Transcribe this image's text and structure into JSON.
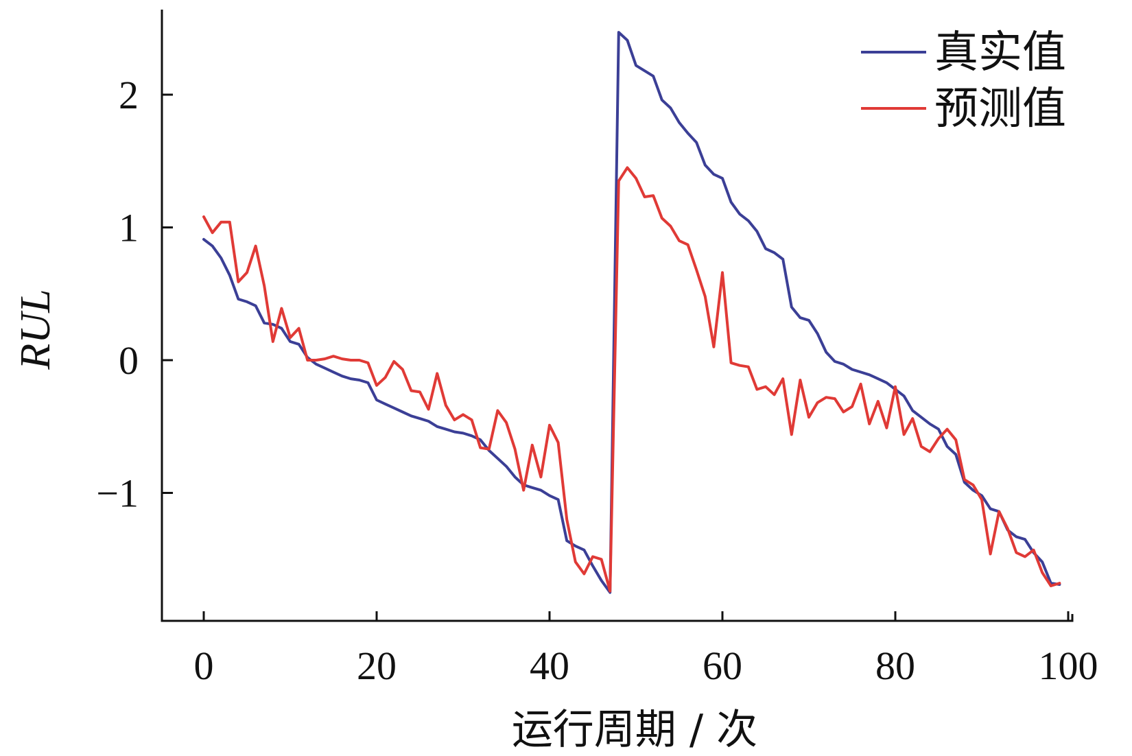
{
  "chart_data": {
    "type": "line",
    "xlabel": "运行周期 / 次",
    "ylabel": "RUL",
    "xlim": [
      -5,
      100
    ],
    "ylim": [
      -1.95,
      2.6
    ],
    "x_ticks": [
      0,
      20,
      40,
      60,
      80,
      100
    ],
    "x_tick_labels": [
      "0",
      "20",
      "40",
      "60",
      "80",
      "100"
    ],
    "y_ticks": [
      2,
      1,
      0,
      -1
    ],
    "y_tick_labels": [
      "2",
      "1",
      "0",
      "−1"
    ],
    "grid": false,
    "legend_position": "top-right",
    "x": [
      0,
      1,
      2,
      3,
      4,
      5,
      6,
      7,
      8,
      9,
      10,
      11,
      12,
      13,
      14,
      15,
      16,
      17,
      18,
      19,
      20,
      21,
      22,
      23,
      24,
      25,
      26,
      27,
      28,
      29,
      30,
      31,
      32,
      33,
      34,
      35,
      36,
      37,
      38,
      39,
      40,
      41,
      42,
      43,
      44,
      45,
      46,
      47,
      48,
      49,
      50,
      51,
      52,
      53,
      54,
      55,
      56,
      57,
      58,
      59,
      60,
      61,
      62,
      63,
      64,
      65,
      66,
      67,
      68,
      69,
      70,
      71,
      72,
      73,
      74,
      75,
      76,
      77,
      78,
      79,
      80,
      81,
      82,
      83,
      84,
      85,
      86,
      87,
      88,
      89,
      90,
      91,
      92,
      93,
      94,
      95,
      96,
      97,
      98,
      99
    ],
    "series": [
      {
        "name": "真实值",
        "color": "#3b3f96",
        "values": [
          0.91,
          0.86,
          0.77,
          0.64,
          0.46,
          0.44,
          0.41,
          0.28,
          0.27,
          0.24,
          0.14,
          0.12,
          0.02,
          -0.03,
          -0.06,
          -0.09,
          -0.12,
          -0.14,
          -0.15,
          -0.17,
          -0.3,
          -0.33,
          -0.36,
          -0.39,
          -0.42,
          -0.44,
          -0.46,
          -0.5,
          -0.52,
          -0.54,
          -0.55,
          -0.57,
          -0.6,
          -0.68,
          -0.74,
          -0.8,
          -0.88,
          -0.94,
          -0.96,
          -0.98,
          -1.02,
          -1.05,
          -1.36,
          -1.4,
          -1.43,
          -1.55,
          -1.66,
          -1.75,
          2.47,
          2.41,
          2.22,
          2.18,
          2.14,
          1.96,
          1.9,
          1.79,
          1.71,
          1.64,
          1.47,
          1.4,
          1.37,
          1.19,
          1.1,
          1.05,
          0.97,
          0.84,
          0.81,
          0.76,
          0.4,
          0.32,
          0.3,
          0.2,
          0.06,
          -0.01,
          -0.03,
          -0.07,
          -0.09,
          -0.11,
          -0.14,
          -0.17,
          -0.22,
          -0.27,
          -0.38,
          -0.43,
          -0.48,
          -0.52,
          -0.65,
          -0.71,
          -0.92,
          -0.98,
          -1.02,
          -1.12,
          -1.14,
          -1.28,
          -1.33,
          -1.35,
          -1.45,
          -1.52,
          -1.68,
          -1.69
        ]
      },
      {
        "name": "预测值",
        "color": "#e03a36",
        "values": [
          1.08,
          0.96,
          1.04,
          1.04,
          0.59,
          0.66,
          0.86,
          0.56,
          0.14,
          0.39,
          0.17,
          0.24,
          0.0,
          0.0,
          0.01,
          0.03,
          0.01,
          0.0,
          0.0,
          -0.02,
          -0.19,
          -0.13,
          -0.01,
          -0.07,
          -0.23,
          -0.24,
          -0.37,
          -0.1,
          -0.34,
          -0.45,
          -0.41,
          -0.45,
          -0.66,
          -0.67,
          -0.38,
          -0.47,
          -0.67,
          -0.98,
          -0.64,
          -0.88,
          -0.49,
          -0.62,
          -1.2,
          -1.52,
          -1.61,
          -1.48,
          -1.5,
          -1.74,
          1.35,
          1.45,
          1.37,
          1.23,
          1.24,
          1.07,
          1.01,
          0.9,
          0.87,
          0.68,
          0.48,
          0.1,
          0.66,
          -0.02,
          -0.04,
          -0.05,
          -0.22,
          -0.2,
          -0.26,
          -0.14,
          -0.56,
          -0.15,
          -0.43,
          -0.32,
          -0.28,
          -0.29,
          -0.39,
          -0.35,
          -0.18,
          -0.48,
          -0.31,
          -0.51,
          -0.2,
          -0.56,
          -0.44,
          -0.65,
          -0.69,
          -0.59,
          -0.52,
          -0.6,
          -0.9,
          -0.94,
          -1.05,
          -1.46,
          -1.14,
          -1.27,
          -1.45,
          -1.48,
          -1.43,
          -1.6,
          -1.7,
          -1.68
        ]
      }
    ]
  }
}
